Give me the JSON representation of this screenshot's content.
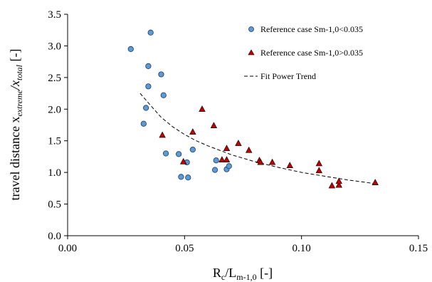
{
  "chart_data": {
    "type": "scatter",
    "xlim": [
      0.0,
      0.15
    ],
    "ylim": [
      0.0,
      3.5
    ],
    "x_ticks": [
      0.0,
      0.05,
      0.1,
      0.15
    ],
    "x_tick_labels": [
      "0.00",
      "0.05",
      "0.10",
      "0.15"
    ],
    "y_ticks": [
      0.0,
      0.5,
      1.0,
      1.5,
      2.0,
      2.5,
      3.0,
      3.5
    ],
    "y_tick_labels": [
      "0.0",
      "0.5",
      "1.0",
      "1.5",
      "2.0",
      "2.5",
      "3.0",
      "3.5"
    ],
    "xlabel": {
      "base": "R",
      "sub1": "c",
      "mid": "/L",
      "sub2": "m-1,0",
      "end": " [-]"
    },
    "ylabel": {
      "base": "travel distance x",
      "sub1": "extreme",
      "mid": "/x",
      "sub2": "total",
      "end": " [-]"
    },
    "grid": false,
    "legend_position": "top-right",
    "series": [
      {
        "name": "Reference case Sm-1,0<0.035",
        "marker": "circle",
        "color": "#5b9bd5",
        "points": [
          {
            "x": 0.027,
            "y": 2.95
          },
          {
            "x": 0.0355,
            "y": 3.21
          },
          {
            "x": 0.0345,
            "y": 2.68
          },
          {
            "x": 0.0345,
            "y": 2.36
          },
          {
            "x": 0.04,
            "y": 2.55
          },
          {
            "x": 0.041,
            "y": 2.22
          },
          {
            "x": 0.0335,
            "y": 2.02
          },
          {
            "x": 0.0325,
            "y": 1.77
          },
          {
            "x": 0.042,
            "y": 1.3
          },
          {
            "x": 0.0475,
            "y": 1.29
          },
          {
            "x": 0.0535,
            "y": 1.36
          },
          {
            "x": 0.051,
            "y": 1.16
          },
          {
            "x": 0.0485,
            "y": 0.93
          },
          {
            "x": 0.0515,
            "y": 0.92
          },
          {
            "x": 0.0635,
            "y": 1.19
          },
          {
            "x": 0.063,
            "y": 1.04
          },
          {
            "x": 0.068,
            "y": 1.05
          },
          {
            "x": 0.069,
            "y": 1.1
          }
        ]
      },
      {
        "name": "Reference case Sm-1,0>0.035",
        "marker": "triangle",
        "color": "#c00000",
        "points": [
          {
            "x": 0.0405,
            "y": 1.59
          },
          {
            "x": 0.0495,
            "y": 1.17
          },
          {
            "x": 0.0535,
            "y": 1.64
          },
          {
            "x": 0.0575,
            "y": 2.0
          },
          {
            "x": 0.0625,
            "y": 1.74
          },
          {
            "x": 0.066,
            "y": 1.2
          },
          {
            "x": 0.068,
            "y": 1.2
          },
          {
            "x": 0.068,
            "y": 1.38
          },
          {
            "x": 0.073,
            "y": 1.46
          },
          {
            "x": 0.0775,
            "y": 1.35
          },
          {
            "x": 0.082,
            "y": 1.19
          },
          {
            "x": 0.0825,
            "y": 1.16
          },
          {
            "x": 0.0875,
            "y": 1.16
          },
          {
            "x": 0.095,
            "y": 1.11
          },
          {
            "x": 0.1075,
            "y": 1.14
          },
          {
            "x": 0.1075,
            "y": 1.03
          },
          {
            "x": 0.113,
            "y": 0.79
          },
          {
            "x": 0.116,
            "y": 0.8
          },
          {
            "x": 0.116,
            "y": 0.86
          },
          {
            "x": 0.1315,
            "y": 0.84
          }
        ]
      },
      {
        "name": "Fit Power Trend",
        "marker": "dashed-line",
        "color": "#000000",
        "points": [
          {
            "x": 0.031,
            "y": 2.25
          },
          {
            "x": 0.035,
            "y": 2.08
          },
          {
            "x": 0.04,
            "y": 1.87
          },
          {
            "x": 0.045,
            "y": 1.72
          },
          {
            "x": 0.05,
            "y": 1.6
          },
          {
            "x": 0.055,
            "y": 1.5
          },
          {
            "x": 0.06,
            "y": 1.42
          },
          {
            "x": 0.07,
            "y": 1.28
          },
          {
            "x": 0.08,
            "y": 1.17
          },
          {
            "x": 0.09,
            "y": 1.08
          },
          {
            "x": 0.1,
            "y": 1.0
          },
          {
            "x": 0.11,
            "y": 0.94
          },
          {
            "x": 0.12,
            "y": 0.88
          },
          {
            "x": 0.132,
            "y": 0.82
          }
        ]
      }
    ]
  }
}
